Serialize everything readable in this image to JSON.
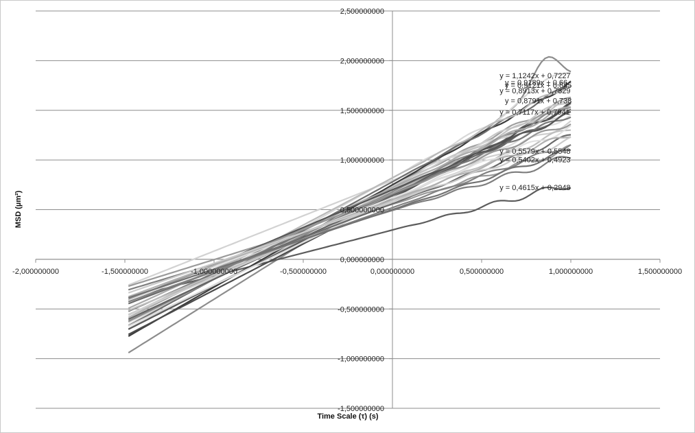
{
  "chart_data": {
    "type": "line",
    "title": "",
    "xlabel": "Time Scale  (τ) (s)",
    "ylabel": "MSD (µm²)",
    "xlim": [
      -2.0,
      1.5
    ],
    "ylim": [
      -1.5,
      2.5
    ],
    "x_ticks": [
      {
        "value": -2.0,
        "label": "-2,000000000"
      },
      {
        "value": -1.5,
        "label": "-1,500000000"
      },
      {
        "value": -1.0,
        "label": "-1,000000000"
      },
      {
        "value": -0.5,
        "label": "-0,500000000"
      },
      {
        "value": 0.0,
        "label": "0,000000000"
      },
      {
        "value": 0.5,
        "label": "0,500000000"
      },
      {
        "value": 1.0,
        "label": "1,000000000"
      },
      {
        "value": 1.5,
        "label": "1,500000000"
      }
    ],
    "y_ticks": [
      {
        "value": 2.5,
        "label": "2,500000000"
      },
      {
        "value": 2.0,
        "label": "2,000000000"
      },
      {
        "value": 1.5,
        "label": "1,500000000"
      },
      {
        "value": 1.0,
        "label": "1,000000000"
      },
      {
        "value": 0.5,
        "label": "0,500000000"
      },
      {
        "value": 0.0,
        "label": "0,000000000"
      },
      {
        "value": -0.5,
        "label": "-0,500000000"
      },
      {
        "value": -1.0,
        "label": "-1,000000000"
      },
      {
        "value": -1.5,
        "label": "-1,500000000"
      }
    ],
    "grid": "horizontal",
    "legend": "none",
    "x_range": [
      -1.48,
      1.0
    ],
    "series": [
      {
        "slope": 1.1242,
        "intercept": 0.7227,
        "color": "#8c8c8c",
        "bump": 0.32,
        "noise": 0.03
      },
      {
        "slope": 0.9189,
        "intercept": 0.66,
        "color": "#b4b4b4",
        "bump": 0.0,
        "noise": 0.03
      },
      {
        "slope": 0.9121,
        "intercept": 0.645,
        "color": "#5a5a5a",
        "bump": 0.0,
        "noise": 0.03
      },
      {
        "slope": 0.8913,
        "intercept": 0.7329,
        "color": "#a0a0a0",
        "bump": 0.0,
        "noise": 0.03
      },
      {
        "slope": 0.8791,
        "intercept": 0.738,
        "color": "#c8c8c8",
        "bump": 0.0,
        "noise": 0.03
      },
      {
        "slope": 0.7117,
        "intercept": 0.7941,
        "color": "#d2d2d2",
        "bump": 0.0,
        "noise": 0.03
      },
      {
        "slope": 0.5579,
        "intercept": 0.5548,
        "color": "#9a9a9a",
        "bump": 0.0,
        "noise": 0.04
      },
      {
        "slope": 0.5402,
        "intercept": 0.4923,
        "color": "#7e7e7e",
        "bump": 0.0,
        "noise": 0.04
      },
      {
        "slope": 0.4615,
        "intercept": 0.2948,
        "color": "#5c5c5c",
        "bump": 0.0,
        "noise": 0.04
      },
      {
        "slope": 1.03,
        "intercept": 0.75,
        "color": "#3c3c3c",
        "bump": 0.0,
        "noise": 0.025
      },
      {
        "slope": 1.0,
        "intercept": 0.82,
        "color": "#d8d8d8",
        "bump": 0.15,
        "noise": 0.03
      },
      {
        "slope": 0.98,
        "intercept": 0.78,
        "color": "#6e6e6e",
        "bump": 0.0,
        "noise": 0.025
      },
      {
        "slope": 0.95,
        "intercept": 0.82,
        "color": "#b9b9b9",
        "bump": 0.0,
        "noise": 0.03
      },
      {
        "slope": 0.93,
        "intercept": 0.62,
        "color": "#4b4b4b",
        "bump": 0.0,
        "noise": 0.03
      },
      {
        "slope": 0.9,
        "intercept": 0.7,
        "color": "#c3c3c3",
        "bump": 0.0,
        "noise": 0.03
      },
      {
        "slope": 0.88,
        "intercept": 0.68,
        "color": "#8a8a8a",
        "bump": 0.0,
        "noise": 0.03
      },
      {
        "slope": 0.86,
        "intercept": 0.6,
        "color": "#dcdcdc",
        "bump": 0.0,
        "noise": 0.03
      },
      {
        "slope": 0.84,
        "intercept": 0.64,
        "color": "#646464",
        "bump": 0.0,
        "noise": 0.03
      },
      {
        "slope": 0.82,
        "intercept": 0.72,
        "color": "#aaaaaa",
        "bump": 0.0,
        "noise": 0.03
      },
      {
        "slope": 0.8,
        "intercept": 0.66,
        "color": "#787878",
        "bump": 0.0,
        "noise": 0.03
      },
      {
        "slope": 0.78,
        "intercept": 0.6,
        "color": "#cfcfcf",
        "bump": 0.0,
        "noise": 0.03
      },
      {
        "slope": 0.76,
        "intercept": 0.7,
        "color": "#555555",
        "bump": 0.0,
        "noise": 0.03
      },
      {
        "slope": 0.74,
        "intercept": 0.58,
        "color": "#bebebe",
        "bump": 0.0,
        "noise": 0.03
      },
      {
        "slope": 0.72,
        "intercept": 0.66,
        "color": "#969696",
        "bump": 0.0,
        "noise": 0.03
      },
      {
        "slope": 0.7,
        "intercept": 0.62,
        "color": "#e0e0e0",
        "bump": 0.0,
        "noise": 0.03
      },
      {
        "slope": 0.68,
        "intercept": 0.56,
        "color": "#6a6a6a",
        "bump": 0.0,
        "noise": 0.03
      },
      {
        "slope": 0.66,
        "intercept": 0.6,
        "color": "#b0b0b0",
        "bump": 0.0,
        "noise": 0.03
      },
      {
        "slope": 0.64,
        "intercept": 0.52,
        "color": "#828282",
        "bump": 0.0,
        "noise": 0.03
      },
      {
        "slope": 0.62,
        "intercept": 0.58,
        "color": "#cacaca",
        "bump": 0.0,
        "noise": 0.03
      },
      {
        "slope": 0.6,
        "intercept": 0.5,
        "color": "#727272",
        "bump": 0.0,
        "noise": 0.03
      }
    ],
    "trendline_labels": [
      {
        "text": "y = 1,1242x + 0,7227",
        "x": 0.87,
        "y": 1.85
      },
      {
        "text": "y = 0,9189x + 0,66",
        "x": 0.9,
        "y": 1.78
      },
      {
        "text": "y = 0,9121x + 0,645",
        "x": 0.9,
        "y": 1.755
      },
      {
        "text": "y = 0,8913x + 0,7329",
        "x": 0.87,
        "y": 1.7
      },
      {
        "text": "y = 0,8791x + 0,738",
        "x": 0.9,
        "y": 1.6
      },
      {
        "text": "y = 0,7117x + 0,7941",
        "x": 0.87,
        "y": 1.485
      },
      {
        "text": "y = 0,5579x + 0,5548",
        "x": 0.87,
        "y": 1.09
      },
      {
        "text": "y = 0,5402x + 0,4923",
        "x": 0.87,
        "y": 1.005
      },
      {
        "text": "y = 0,4615x + 0,2948",
        "x": 0.87,
        "y": 0.725
      }
    ]
  }
}
